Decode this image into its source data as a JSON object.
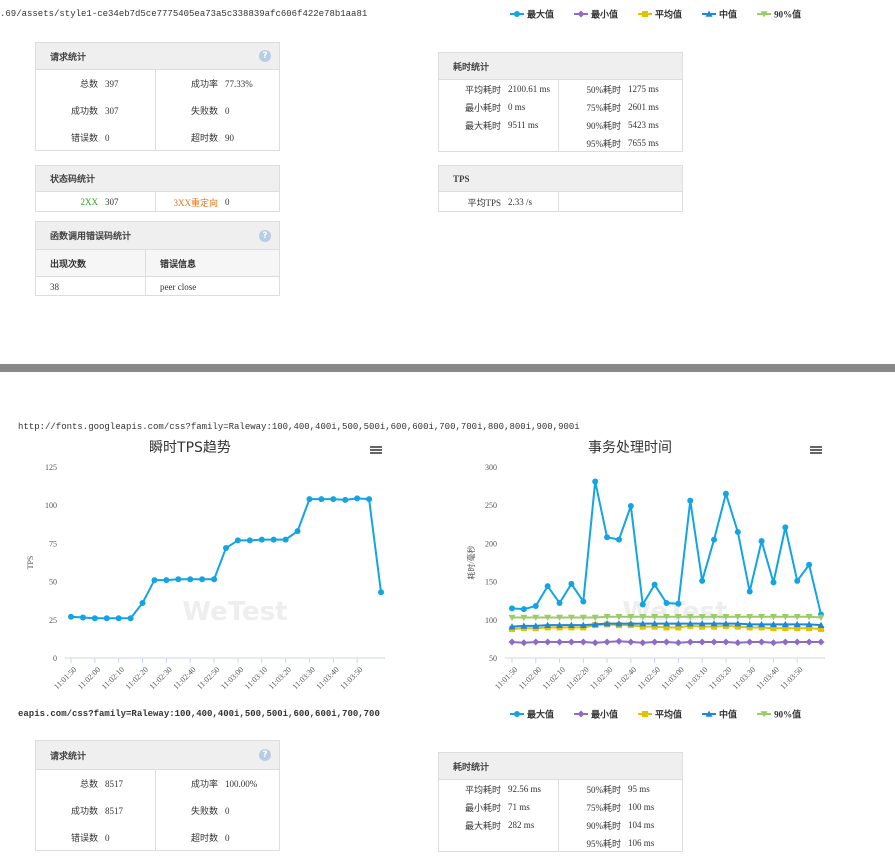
{
  "top_url": ".69/assets/style1-ce34eb7d5ce7775405ea73a5c338839afc606f422e78b1aa81",
  "top_legend": [
    {
      "name": "最大值",
      "color": "#13a4e2",
      "marker": "circle"
    },
    {
      "name": "最小值",
      "color": "#8e6cc6",
      "marker": "diamond"
    },
    {
      "name": "平均值",
      "color": "#e5c100",
      "marker": "square"
    },
    {
      "name": "中值",
      "color": "#1e88d8",
      "marker": "triangle"
    },
    {
      "name": "90%值",
      "color": "#9ccc6a",
      "marker": "triangle-down"
    }
  ],
  "panels": [
    {
      "title": "请求统计",
      "help": "?",
      "left": [
        [
          "总数",
          "397"
        ],
        [
          "成功数",
          "307"
        ],
        [
          "错误数",
          "0"
        ]
      ],
      "right": [
        [
          "成功率",
          "77.33%"
        ],
        [
          "失败数",
          "0"
        ],
        [
          "超时数",
          "90"
        ]
      ]
    },
    {
      "title": "耗时统计",
      "left": [
        [
          "平均耗时",
          "2100.61 ms"
        ],
        [
          "最小耗时",
          "0 ms"
        ],
        [
          "最大耗时",
          "9511 ms"
        ]
      ],
      "right": [
        [
          "50%耗时",
          "1275 ms"
        ],
        [
          "75%耗时",
          "2601 ms"
        ],
        [
          "90%耗时",
          "5423 ms"
        ],
        [
          "95%耗时",
          "7655 ms"
        ]
      ]
    },
    {
      "title": "状态码统计",
      "left": [
        [
          "2XX",
          "307"
        ]
      ],
      "right": [
        [
          "3XX重定向",
          "0"
        ]
      ]
    },
    {
      "title": "TPS",
      "left": [
        [
          "平均TPS",
          "2.33 /s"
        ]
      ],
      "right": []
    },
    {
      "title": "请求统计",
      "help": "?",
      "left": [
        [
          "总数",
          "8517"
        ],
        [
          "成功数",
          "8517"
        ],
        [
          "错误数",
          "0"
        ]
      ],
      "right": [
        [
          "成功率",
          "100.00%"
        ],
        [
          "失败数",
          "0"
        ],
        [
          "超时数",
          "0"
        ]
      ]
    },
    {
      "title": "耗时统计",
      "left": [
        [
          "平均耗时",
          "92.56 ms"
        ],
        [
          "最小耗时",
          "71 ms"
        ],
        [
          "最大耗时",
          "282 ms"
        ]
      ],
      "right": [
        [
          "50%耗时",
          "95 ms"
        ],
        [
          "75%耗时",
          "100 ms"
        ],
        [
          "90%耗时",
          "104 ms"
        ],
        [
          "95%耗时",
          "106 ms"
        ]
      ]
    }
  ],
  "error_table": {
    "title": "函数调用错误码统计",
    "help": "?",
    "header": [
      "出现次数",
      "错误信息"
    ],
    "rows": [
      [
        "38",
        "peer close"
      ]
    ]
  },
  "mid_url": "http://fonts.googleapis.com/css?family=Raleway:100,400,400i,500,500i,600,600i,700,700i,800,800i,900,900i",
  "bottom_url": "eapis.com/css?family=Raleway:100,400,400i,500,500i,600,600i,700,700",
  "chart_data": [
    {
      "type": "line",
      "title": "瞬时TPS趋势",
      "y_label": "TPS",
      "watermark": "WeTest",
      "categories": [
        "11:01:50",
        null,
        "11:02:00",
        null,
        "11:02:10",
        null,
        "11:02:20",
        null,
        "11:02:30",
        null,
        "11:02:40",
        null,
        "11:02:50",
        null,
        "11:03:00",
        null,
        "11:03:10",
        null,
        "11:03:20",
        null,
        "11:03:30",
        null,
        "11:03:40",
        null,
        "11:03:50",
        null,
        null
      ],
      "ylim": [
        0,
        125
      ],
      "yticks": [
        0,
        25,
        50,
        75,
        100,
        125
      ],
      "grid": false,
      "series": [
        {
          "name": "TPS",
          "color": "#13a4e2",
          "marker": "circle",
          "values": [
            27,
            26.5,
            26,
            26,
            26,
            26,
            36,
            51,
            51,
            51.5,
            51.5,
            51.5,
            51.5,
            72,
            77,
            77,
            77.5,
            77.5,
            77.5,
            83,
            104,
            104,
            104,
            103.5,
            104.5,
            104,
            43
          ]
        }
      ]
    },
    {
      "type": "line",
      "title": "事务处理时间",
      "y_label": "耗时/毫秒",
      "watermark": "WeTest",
      "legend": "bottom",
      "categories": [
        "11:01:50",
        null,
        "11:02:00",
        null,
        "11:02:10",
        null,
        "11:02:20",
        null,
        "11:02:30",
        null,
        "11:02:40",
        null,
        "11:02:50",
        null,
        "11:03:00",
        null,
        "11:03:10",
        null,
        "11:03:20",
        null,
        "11:03:30",
        null,
        "11:03:40",
        null,
        "11:03:50",
        null,
        null
      ],
      "ylim": [
        50,
        300
      ],
      "yticks": [
        50,
        100,
        150,
        200,
        250,
        300
      ],
      "grid": false,
      "series": [
        {
          "name": "最大值",
          "color": "#13a4e2",
          "marker": "circle",
          "values": [
            115,
            114,
            118,
            144,
            122,
            147,
            124,
            281,
            208,
            205,
            249,
            120,
            146,
            122,
            121,
            256,
            151,
            205,
            265,
            215,
            137,
            203,
            149,
            221,
            151,
            172,
            107
          ]
        },
        {
          "name": "最小值",
          "color": "#8e6cc6",
          "marker": "diamond",
          "values": [
            71,
            70,
            71,
            71,
            71,
            71,
            71,
            70,
            71,
            72,
            71,
            70,
            71,
            71,
            70,
            71,
            71,
            71,
            71,
            70,
            71,
            71,
            70,
            71,
            71,
            71,
            71
          ]
        },
        {
          "name": "平均值",
          "color": "#e5c100",
          "marker": "square",
          "values": [
            88,
            89,
            89,
            90,
            90,
            90,
            90,
            93,
            94,
            93,
            93,
            91,
            91,
            90,
            90,
            92,
            91,
            91,
            92,
            91,
            90,
            90,
            89,
            89,
            89,
            89,
            88
          ]
        },
        {
          "name": "中值",
          "color": "#1e88d8",
          "marker": "triangle",
          "values": [
            91,
            92,
            92,
            93,
            93,
            93,
            93,
            94,
            95,
            95,
            95,
            95,
            95,
            95,
            95,
            95,
            95,
            95,
            95,
            95,
            94,
            94,
            94,
            94,
            94,
            94,
            93
          ]
        },
        {
          "name": "90%值",
          "color": "#9ccc6a",
          "marker": "triangle-down",
          "values": [
            103,
            103,
            103,
            103,
            103,
            103,
            103,
            103,
            104,
            104,
            104,
            104,
            104,
            104,
            104,
            104,
            104,
            104,
            104,
            104,
            104,
            104,
            104,
            104,
            104,
            104,
            103
          ]
        }
      ]
    }
  ]
}
